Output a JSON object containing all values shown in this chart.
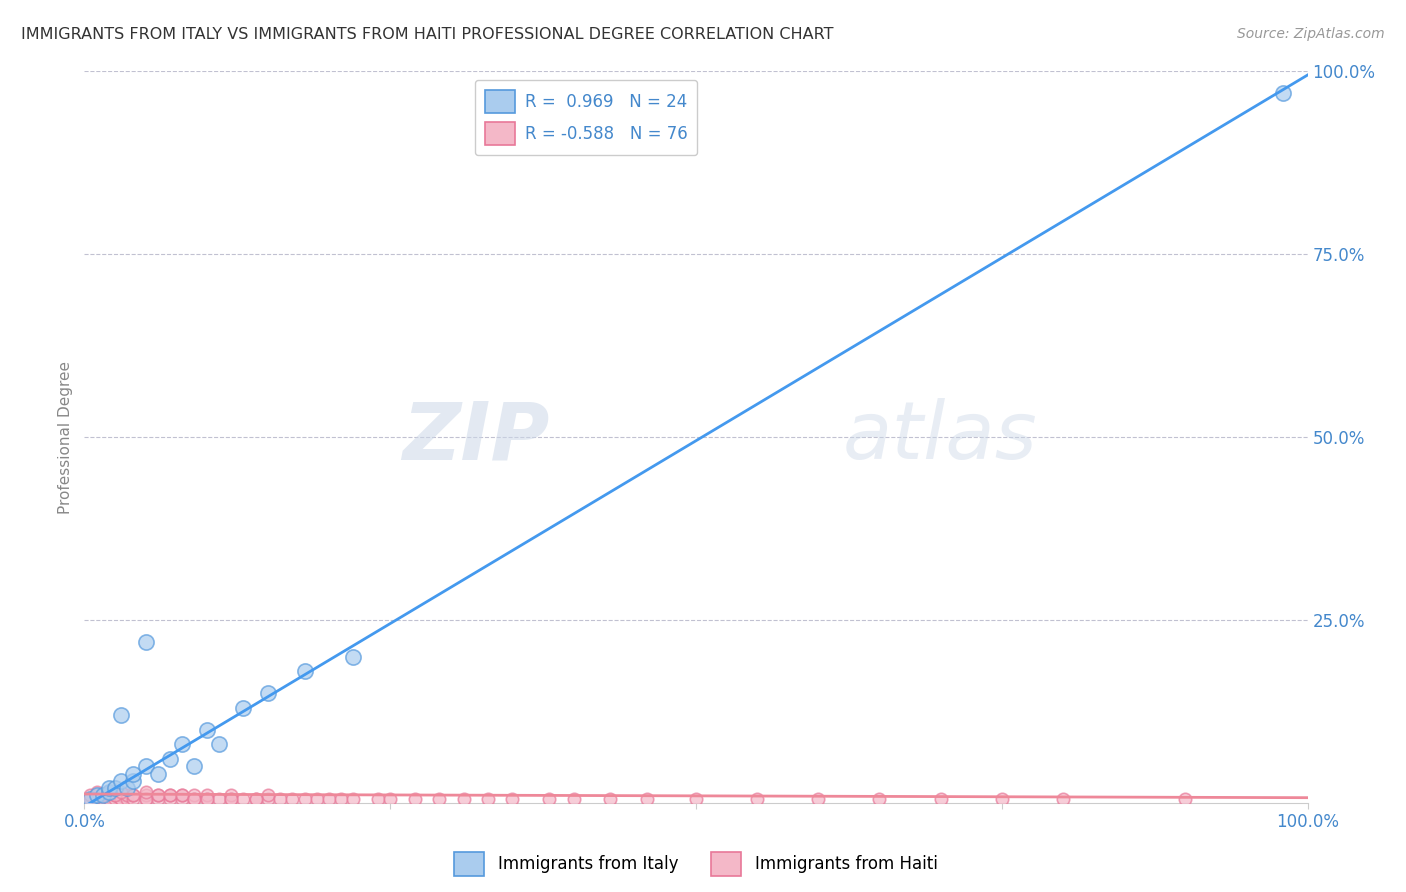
{
  "title": "IMMIGRANTS FROM ITALY VS IMMIGRANTS FROM HAITI PROFESSIONAL DEGREE CORRELATION CHART",
  "source": "Source: ZipAtlas.com",
  "ylabel": "Professional Degree",
  "xlim": [
    0,
    1
  ],
  "ylim": [
    0,
    1
  ],
  "xticks": [
    0,
    0.25,
    0.5,
    0.75,
    1.0
  ],
  "yticks": [
    0.25,
    0.5,
    0.75,
    1.0
  ],
  "xticklabels_bottom": [
    "0.0%",
    "",
    "",
    "",
    "100.0%"
  ],
  "yticklabels_right": [
    "25.0%",
    "50.0%",
    "75.0%",
    "100.0%"
  ],
  "italy_color": "#aaccee",
  "italy_edge_color": "#5599dd",
  "haiti_color": "#f4b8c8",
  "haiti_edge_color": "#e87898",
  "italy_line_color": "#4499ee",
  "haiti_line_color": "#ee8899",
  "italy_R": 0.969,
  "italy_N": 24,
  "haiti_R": -0.588,
  "haiti_N": 76,
  "legend_italy_label": "Immigrants from Italy",
  "legend_haiti_label": "Immigrants from Haiti",
  "watermark_zip": "ZIP",
  "watermark_atlas": "atlas",
  "background_color": "#ffffff",
  "grid_color": "#bbbbcc",
  "title_color": "#333333",
  "axis_label_color": "#4488cc",
  "italy_scatter_x": [
    0.005,
    0.01,
    0.015,
    0.02,
    0.02,
    0.025,
    0.03,
    0.035,
    0.04,
    0.04,
    0.05,
    0.06,
    0.07,
    0.08,
    0.09,
    0.1,
    0.11,
    0.13,
    0.15,
    0.18,
    0.22,
    0.03,
    0.05,
    0.98
  ],
  "italy_scatter_y": [
    0.005,
    0.01,
    0.01,
    0.015,
    0.02,
    0.02,
    0.03,
    0.02,
    0.03,
    0.04,
    0.05,
    0.04,
    0.06,
    0.08,
    0.05,
    0.1,
    0.08,
    0.13,
    0.15,
    0.18,
    0.2,
    0.12,
    0.22,
    0.97
  ],
  "haiti_scatter_x": [
    0.005,
    0.01,
    0.01,
    0.015,
    0.02,
    0.02,
    0.025,
    0.025,
    0.03,
    0.03,
    0.03,
    0.035,
    0.035,
    0.04,
    0.04,
    0.05,
    0.05,
    0.05,
    0.06,
    0.06,
    0.07,
    0.07,
    0.08,
    0.08,
    0.09,
    0.09,
    0.1,
    0.1,
    0.11,
    0.12,
    0.12,
    0.13,
    0.14,
    0.15,
    0.15,
    0.16,
    0.17,
    0.18,
    0.19,
    0.2,
    0.21,
    0.22,
    0.24,
    0.25,
    0.27,
    0.29,
    0.31,
    0.33,
    0.35,
    0.38,
    0.4,
    0.43,
    0.46,
    0.5,
    0.55,
    0.6,
    0.65,
    0.7,
    0.75,
    0.8,
    0.005,
    0.01,
    0.015,
    0.02,
    0.025,
    0.03,
    0.04,
    0.05,
    0.06,
    0.07,
    0.08,
    0.09,
    0.1,
    0.12,
    0.14,
    0.9
  ],
  "haiti_scatter_y": [
    0.005,
    0.005,
    0.01,
    0.005,
    0.01,
    0.005,
    0.005,
    0.01,
    0.005,
    0.01,
    0.005,
    0.005,
    0.01,
    0.005,
    0.01,
    0.005,
    0.01,
    0.005,
    0.005,
    0.01,
    0.005,
    0.01,
    0.005,
    0.01,
    0.005,
    0.01,
    0.005,
    0.01,
    0.005,
    0.005,
    0.01,
    0.005,
    0.005,
    0.005,
    0.01,
    0.005,
    0.005,
    0.005,
    0.005,
    0.005,
    0.005,
    0.005,
    0.005,
    0.005,
    0.005,
    0.005,
    0.005,
    0.005,
    0.005,
    0.005,
    0.005,
    0.005,
    0.005,
    0.005,
    0.005,
    0.005,
    0.005,
    0.005,
    0.005,
    0.005,
    0.01,
    0.015,
    0.01,
    0.015,
    0.01,
    0.015,
    0.01,
    0.015,
    0.01,
    0.01,
    0.01,
    0.005,
    0.005,
    0.005,
    0.005,
    0.005
  ],
  "italy_line_slope": 1.0,
  "italy_line_intercept": -0.005,
  "haiti_line_slope": -0.005,
  "haiti_line_intercept": 0.012
}
